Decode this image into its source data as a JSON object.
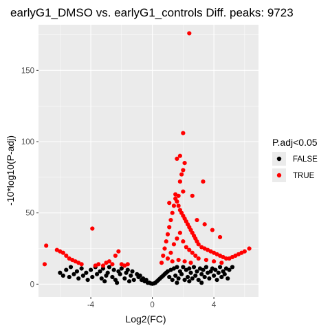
{
  "chart_data": {
    "type": "scatter",
    "title": "earlyG1_DMSO vs. earlyG1_controls Diff. peaks: 9723",
    "xlabel": "Log2(FC)",
    "ylabel": "-10*log10(P-adj)",
    "xlim": [
      -7.4,
      6.9
    ],
    "ylim": [
      -9,
      182
    ],
    "x_ticks": [
      -4,
      0,
      4
    ],
    "x_tick_labels": [
      "-4",
      "0",
      "4"
    ],
    "y_ticks": [
      0,
      50,
      100,
      150
    ],
    "y_tick_labels": [
      "0",
      "50",
      "100",
      "150"
    ],
    "grid": true,
    "legend": {
      "title": "P.adj<0.05",
      "position": "right",
      "entries": [
        {
          "label": "FALSE",
          "color": "#000000"
        },
        {
          "label": "TRUE",
          "color": "#ff0000"
        }
      ]
    },
    "colors": {
      "panel_background": "#ebebeb",
      "grid_major": "#ffffff",
      "false_points": "#000000",
      "true_points": "#ff0000"
    },
    "series": [
      {
        "name": "FALSE",
        "color": "#000000",
        "points": [
          [
            -6.0,
            8
          ],
          [
            -5.8,
            6
          ],
          [
            -5.6,
            10
          ],
          [
            -5.4,
            5
          ],
          [
            -5.3,
            12
          ],
          [
            -5.1,
            7
          ],
          [
            -4.9,
            9
          ],
          [
            -4.8,
            4
          ],
          [
            -4.6,
            11
          ],
          [
            -4.5,
            6
          ],
          [
            -4.3,
            8
          ],
          [
            -4.2,
            3
          ],
          [
            -4.0,
            10
          ],
          [
            -3.9,
            5
          ],
          [
            -3.7,
            12
          ],
          [
            -3.6,
            7
          ],
          [
            -3.4,
            9
          ],
          [
            -3.3,
            4
          ],
          [
            -3.2,
            11
          ],
          [
            -3.0,
            6
          ],
          [
            -2.9,
            8
          ],
          [
            -2.8,
            12
          ],
          [
            -2.6,
            5
          ],
          [
            -2.5,
            10
          ],
          [
            -2.4,
            3
          ],
          [
            -2.2,
            9
          ],
          [
            -2.1,
            7
          ],
          [
            -2.0,
            11
          ],
          [
            -1.8,
            4
          ],
          [
            -1.7,
            8
          ],
          [
            -1.6,
            10
          ],
          [
            -1.4,
            6
          ],
          [
            -1.3,
            9
          ],
          [
            -1.2,
            3
          ],
          [
            -1.0,
            7
          ],
          [
            -0.9,
            5
          ],
          [
            -0.8,
            6
          ],
          [
            -0.7,
            3
          ],
          [
            -0.6,
            4
          ],
          [
            -0.5,
            2
          ],
          [
            -0.4,
            3
          ],
          [
            -0.3,
            1
          ],
          [
            -0.2,
            1
          ],
          [
            -0.1,
            0.5
          ],
          [
            0.0,
            0.3
          ],
          [
            0.1,
            0.5
          ],
          [
            0.2,
            1
          ],
          [
            0.3,
            2
          ],
          [
            0.4,
            3
          ],
          [
            0.5,
            4
          ],
          [
            0.6,
            5
          ],
          [
            0.7,
            6
          ],
          [
            0.8,
            7
          ],
          [
            0.9,
            8
          ],
          [
            1.0,
            9
          ],
          [
            1.1,
            5
          ],
          [
            1.2,
            10
          ],
          [
            1.3,
            3
          ],
          [
            1.4,
            11
          ],
          [
            1.5,
            6
          ],
          [
            1.6,
            12
          ],
          [
            1.7,
            4
          ],
          [
            1.8,
            9
          ],
          [
            1.9,
            7
          ],
          [
            2.0,
            12
          ],
          [
            2.1,
            3
          ],
          [
            2.2,
            10
          ],
          [
            2.3,
            5
          ],
          [
            2.4,
            11
          ],
          [
            2.5,
            8
          ],
          [
            2.6,
            4
          ],
          [
            2.7,
            12
          ],
          [
            2.8,
            6
          ],
          [
            2.9,
            9
          ],
          [
            3.0,
            3
          ],
          [
            3.1,
            11
          ],
          [
            3.2,
            7
          ],
          [
            3.3,
            10
          ],
          [
            3.4,
            5
          ],
          [
            3.5,
            12
          ],
          [
            3.6,
            8
          ],
          [
            3.7,
            4
          ],
          [
            3.8,
            9
          ],
          [
            3.9,
            11
          ],
          [
            4.0,
            6
          ],
          [
            4.1,
            10
          ],
          [
            4.2,
            3
          ],
          [
            4.3,
            8
          ],
          [
            4.4,
            12
          ],
          [
            4.5,
            5
          ],
          [
            4.6,
            9
          ],
          [
            4.7,
            7
          ],
          [
            4.8,
            11
          ],
          [
            4.9,
            4
          ],
          [
            5.0,
            10
          ],
          [
            5.2,
            12
          ],
          [
            -1.5,
            2
          ],
          [
            -2.3,
            1
          ],
          [
            -3.1,
            2
          ],
          [
            1.6,
            1
          ],
          [
            2.4,
            2
          ],
          [
            3.2,
            1
          ]
        ]
      },
      {
        "name": "TRUE",
        "color": "#ff0000",
        "points": [
          [
            -7.0,
            14
          ],
          [
            -6.9,
            27
          ],
          [
            -6.2,
            24
          ],
          [
            -6.0,
            23
          ],
          [
            -5.8,
            22
          ],
          [
            -5.6,
            20
          ],
          [
            -5.4,
            18
          ],
          [
            -5.2,
            17
          ],
          [
            -5.0,
            16
          ],
          [
            -4.8,
            15
          ],
          [
            -4.6,
            14
          ],
          [
            -3.9,
            39
          ],
          [
            -3.7,
            13
          ],
          [
            -3.5,
            14
          ],
          [
            -3.2,
            13
          ],
          [
            -3.0,
            15
          ],
          [
            -2.8,
            16
          ],
          [
            -2.6,
            14
          ],
          [
            -2.4,
            20
          ],
          [
            -2.2,
            23
          ],
          [
            -2.0,
            14
          ],
          [
            -1.8,
            13
          ],
          [
            -1.6,
            14
          ],
          [
            0.6,
            15
          ],
          [
            0.7,
            20
          ],
          [
            0.8,
            25
          ],
          [
            0.9,
            30
          ],
          [
            1.0,
            35
          ],
          [
            1.1,
            40
          ],
          [
            1.2,
            45
          ],
          [
            1.3,
            50
          ],
          [
            1.4,
            55
          ],
          [
            1.5,
            60
          ],
          [
            1.6,
            58
          ],
          [
            1.7,
            55
          ],
          [
            1.8,
            52
          ],
          [
            1.9,
            50
          ],
          [
            2.0,
            48
          ],
          [
            2.1,
            46
          ],
          [
            2.2,
            44
          ],
          [
            2.3,
            42
          ],
          [
            2.4,
            40
          ],
          [
            2.5,
            38
          ],
          [
            2.6,
            36
          ],
          [
            2.7,
            34
          ],
          [
            2.8,
            32
          ],
          [
            2.9,
            30
          ],
          [
            3.0,
            28
          ],
          [
            3.2,
            26
          ],
          [
            3.4,
            25
          ],
          [
            3.6,
            24
          ],
          [
            3.8,
            23
          ],
          [
            4.0,
            22
          ],
          [
            4.2,
            21
          ],
          [
            4.4,
            20
          ],
          [
            4.6,
            19
          ],
          [
            4.8,
            18
          ],
          [
            5.0,
            18
          ],
          [
            5.2,
            19
          ],
          [
            5.4,
            20
          ],
          [
            5.6,
            21
          ],
          [
            5.8,
            22
          ],
          [
            6.0,
            23
          ],
          [
            6.3,
            25
          ],
          [
            1.0,
            18
          ],
          [
            1.2,
            22
          ],
          [
            1.4,
            28
          ],
          [
            1.6,
            32
          ],
          [
            1.8,
            36
          ],
          [
            2.0,
            30
          ],
          [
            2.2,
            26
          ],
          [
            2.4,
            24
          ],
          [
            2.6,
            22
          ],
          [
            2.8,
            20
          ],
          [
            3.0,
            18
          ],
          [
            3.5,
            17
          ],
          [
            4.0,
            16
          ],
          [
            4.5,
            15
          ],
          [
            1.3,
            16
          ],
          [
            1.7,
            17
          ],
          [
            2.1,
            16
          ],
          [
            2.5,
            15
          ],
          [
            1.5,
            63
          ],
          [
            1.7,
            62
          ],
          [
            2.0,
            65
          ],
          [
            2.6,
            62
          ],
          [
            1.8,
            72
          ],
          [
            1.9,
            77
          ],
          [
            2.0,
            80
          ],
          [
            3.3,
            72
          ],
          [
            1.6,
            88
          ],
          [
            1.8,
            90
          ],
          [
            2.1,
            85
          ],
          [
            2.0,
            106
          ],
          [
            2.4,
            176
          ],
          [
            1.1,
            57
          ],
          [
            2.9,
            45
          ],
          [
            3.4,
            42
          ],
          [
            3.9,
            38
          ],
          [
            4.4,
            33
          ]
        ]
      }
    ]
  }
}
